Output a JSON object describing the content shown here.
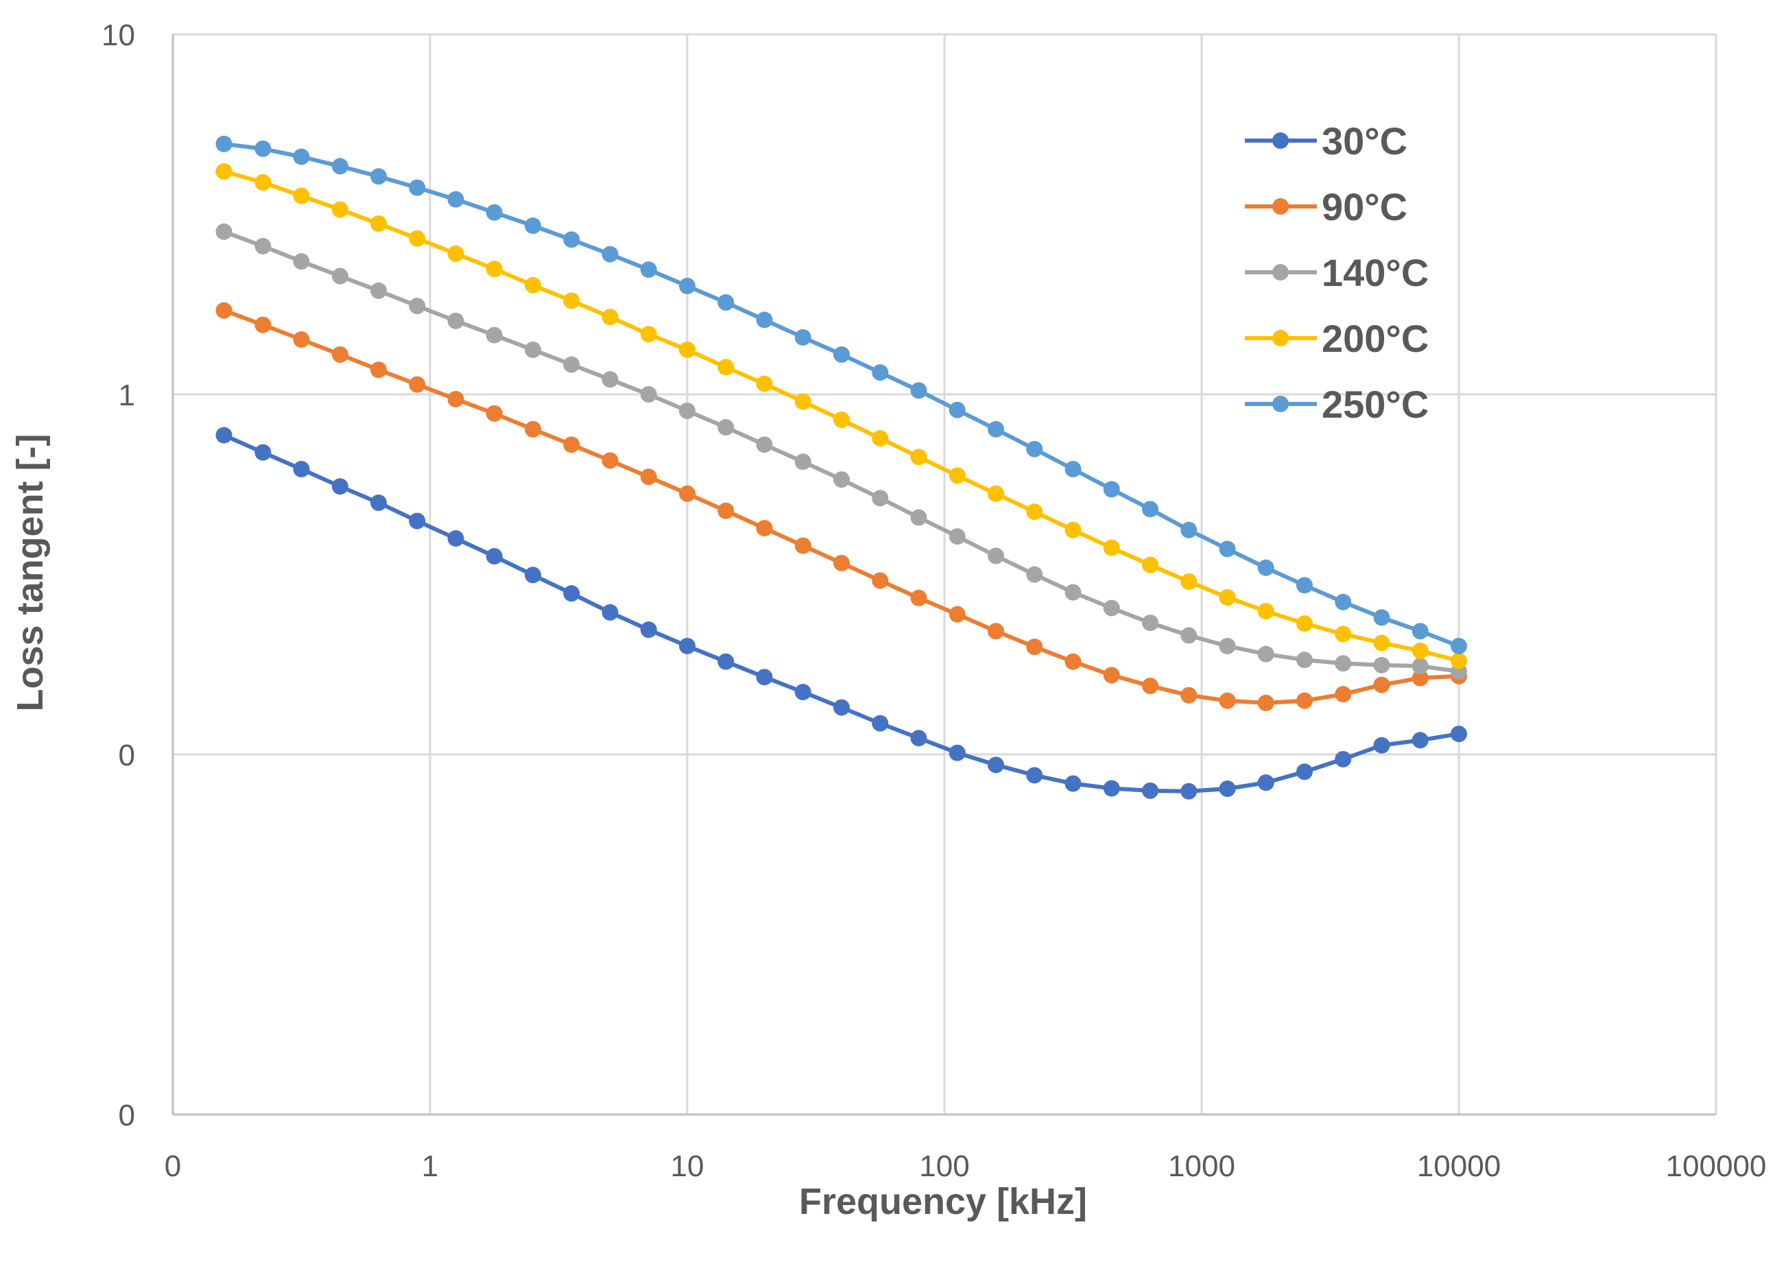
{
  "chart_data": {
    "type": "line",
    "title": "",
    "xlabel": "Frequency [kHz]",
    "ylabel": "Loss tangent [-]",
    "x_scale": "log",
    "y_scale": "log",
    "xlim": [
      0.1,
      100000
    ],
    "ylim": [
      0.01,
      10
    ],
    "grid": true,
    "legend_position": "top-right",
    "x_ticks": [
      {
        "value": 0.1,
        "label": "0"
      },
      {
        "value": 1,
        "label": "1"
      },
      {
        "value": 10,
        "label": "10"
      },
      {
        "value": 100,
        "label": "100"
      },
      {
        "value": 1000,
        "label": "1000"
      },
      {
        "value": 10000,
        "label": "10000"
      },
      {
        "value": 100000,
        "label": "100000"
      }
    ],
    "y_ticks": [
      {
        "value": 0.01,
        "label": "0"
      },
      {
        "value": 0.1,
        "label": "0"
      },
      {
        "value": 1,
        "label": "1"
      },
      {
        "value": 10,
        "label": "10"
      }
    ],
    "x": [
      0.158,
      0.224,
      0.316,
      0.447,
      0.631,
      0.891,
      1.259,
      1.778,
      2.512,
      3.548,
      5.012,
      7.079,
      10.0,
      14.13,
      19.95,
      28.18,
      39.81,
      56.23,
      79.43,
      112.2,
      158.5,
      223.9,
      316.2,
      446.7,
      631.0,
      891.3,
      1259,
      1778,
      2512,
      3548,
      5012,
      7079,
      10000
    ],
    "series": [
      {
        "name": "30°C",
        "color": "#4472c4",
        "values": [
          0.77,
          0.69,
          0.62,
          0.555,
          0.5,
          0.445,
          0.398,
          0.355,
          0.315,
          0.28,
          0.248,
          0.222,
          0.2,
          0.181,
          0.164,
          0.149,
          0.135,
          0.122,
          0.111,
          0.101,
          0.0935,
          0.0875,
          0.083,
          0.0805,
          0.0793,
          0.079,
          0.0803,
          0.0835,
          0.0895,
          0.097,
          0.106,
          0.1095,
          0.114
        ]
      },
      {
        "name": "90°C",
        "color": "#ed7d31",
        "values": [
          1.71,
          1.56,
          1.42,
          1.29,
          1.17,
          1.065,
          0.97,
          0.885,
          0.8,
          0.725,
          0.655,
          0.59,
          0.53,
          0.475,
          0.425,
          0.38,
          0.34,
          0.304,
          0.272,
          0.245,
          0.22,
          0.199,
          0.181,
          0.166,
          0.155,
          0.146,
          0.141,
          0.139,
          0.141,
          0.147,
          0.156,
          0.163,
          0.165
        ]
      },
      {
        "name": "140°C",
        "color": "#a5a5a5",
        "values": [
          2.83,
          2.58,
          2.34,
          2.13,
          1.94,
          1.76,
          1.6,
          1.46,
          1.33,
          1.21,
          1.1,
          1.0,
          0.9,
          0.81,
          0.725,
          0.65,
          0.58,
          0.515,
          0.455,
          0.403,
          0.356,
          0.316,
          0.282,
          0.255,
          0.232,
          0.214,
          0.2,
          0.19,
          0.183,
          0.179,
          0.177,
          0.176,
          0.17
        ]
      },
      {
        "name": "200°C",
        "color": "#ffc000",
        "values": [
          4.16,
          3.88,
          3.56,
          3.26,
          2.98,
          2.71,
          2.46,
          2.23,
          2.01,
          1.82,
          1.64,
          1.47,
          1.33,
          1.19,
          1.07,
          0.955,
          0.85,
          0.755,
          0.67,
          0.595,
          0.53,
          0.472,
          0.42,
          0.375,
          0.336,
          0.302,
          0.273,
          0.25,
          0.231,
          0.216,
          0.204,
          0.194,
          0.182
        ]
      },
      {
        "name": "250°C",
        "color": "#5b9bd5",
        "values": [
          4.96,
          4.81,
          4.57,
          4.3,
          4.03,
          3.75,
          3.48,
          3.2,
          2.94,
          2.69,
          2.45,
          2.22,
          2.0,
          1.8,
          1.61,
          1.44,
          1.29,
          1.15,
          1.025,
          0.905,
          0.8,
          0.705,
          0.62,
          0.545,
          0.48,
          0.42,
          0.372,
          0.33,
          0.295,
          0.265,
          0.24,
          0.22,
          0.2
        ]
      }
    ]
  }
}
